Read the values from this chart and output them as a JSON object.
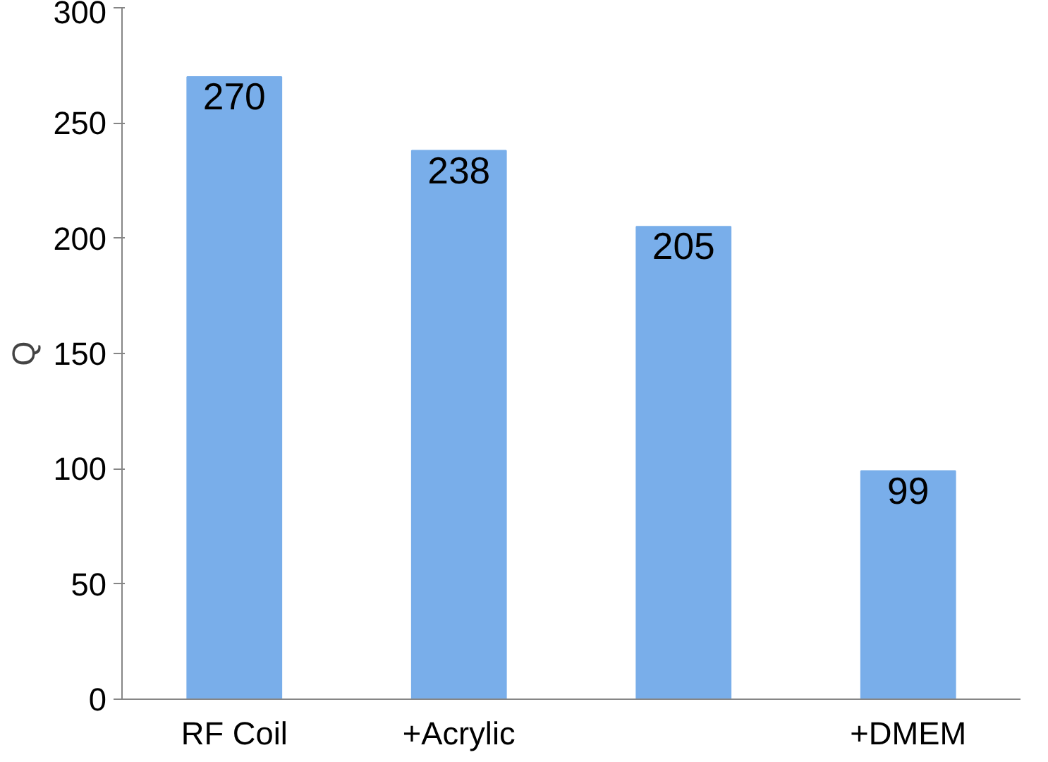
{
  "chart_data": {
    "type": "bar",
    "ylabel": "Q",
    "categories": [
      "RF Coil",
      "+Acrylic",
      null,
      "+DMEM"
    ],
    "values": [
      270,
      238,
      205,
      99
    ],
    "color": "#79aeea",
    "ylim": [
      0,
      300
    ],
    "yticks": [
      0,
      50,
      100,
      150,
      200,
      250,
      300
    ],
    "data_labels": true
  }
}
